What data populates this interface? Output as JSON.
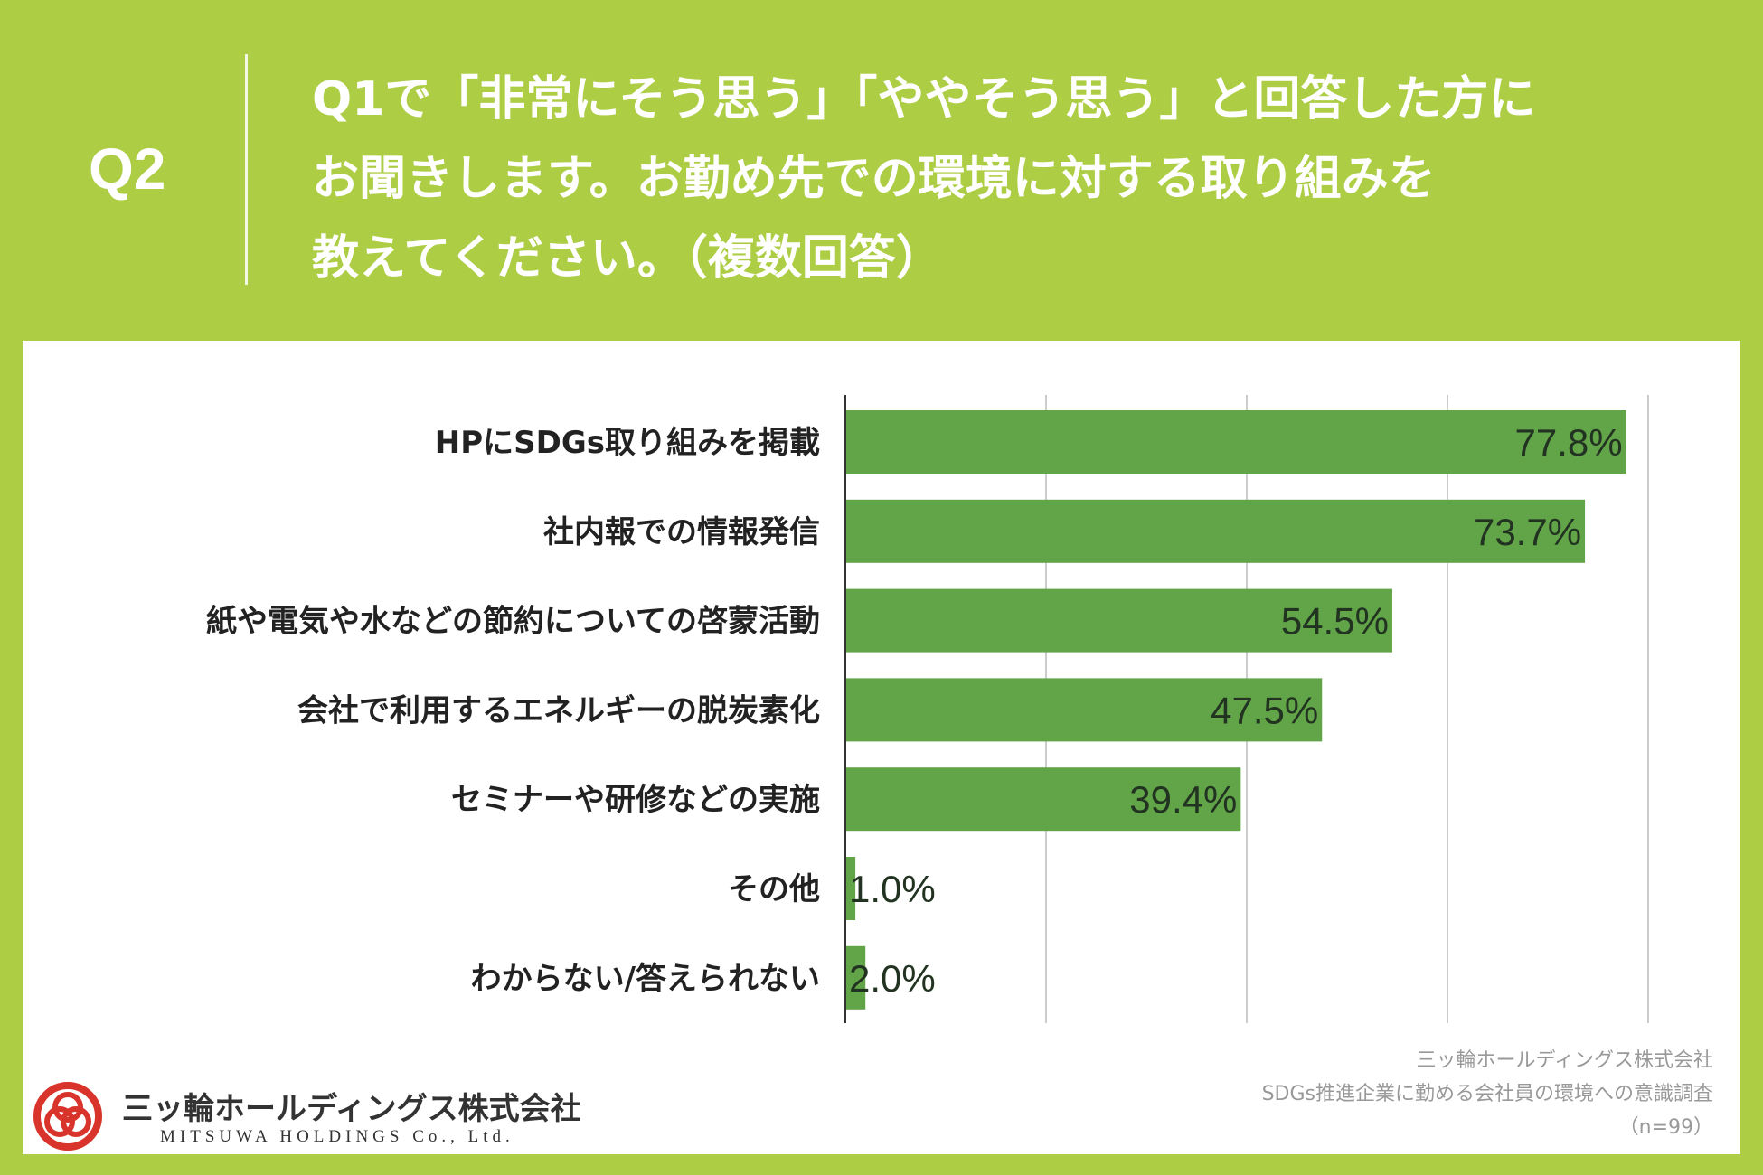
{
  "header": {
    "q_label": "Q2",
    "question_lines": [
      "Q1で「非常にそう思う」「ややそう思う」と回答した方に",
      "お聞きします。お勤め先での環境に対する取り組みを",
      "教えてください。（複数回答）"
    ]
  },
  "chart_data": {
    "type": "bar",
    "orientation": "horizontal",
    "categories": [
      "HPにSDGs取り組みを掲載",
      "社内報での情報発信",
      "紙や電気や水などの節約についての啓蒙活動",
      "会社で利用するエネルギーの脱炭素化",
      "セミナーや研修などの実施",
      "その他",
      "わからない/答えられない"
    ],
    "values": [
      77.8,
      73.7,
      54.5,
      47.5,
      39.4,
      1.0,
      2.0
    ],
    "value_labels": [
      "77.8%",
      "73.7%",
      "54.5%",
      "47.5%",
      "39.4%",
      "1.0%",
      "2.0%"
    ],
    "xlim": [
      0,
      80
    ],
    "grid": true,
    "bar_color": "#62a548"
  },
  "source": {
    "lines": [
      "三ッ輪ホールディングス株式会社",
      "SDGs推進企業に勤める会社員の環境への意識調査",
      "（n=99）"
    ]
  },
  "logo": {
    "name": "三ッ輪ホールディングス株式会社",
    "sub": "MITSUWA HOLDINGS Co., Ltd."
  },
  "colors": {
    "background": "#adcd44",
    "logo_red": "#d9342b"
  }
}
